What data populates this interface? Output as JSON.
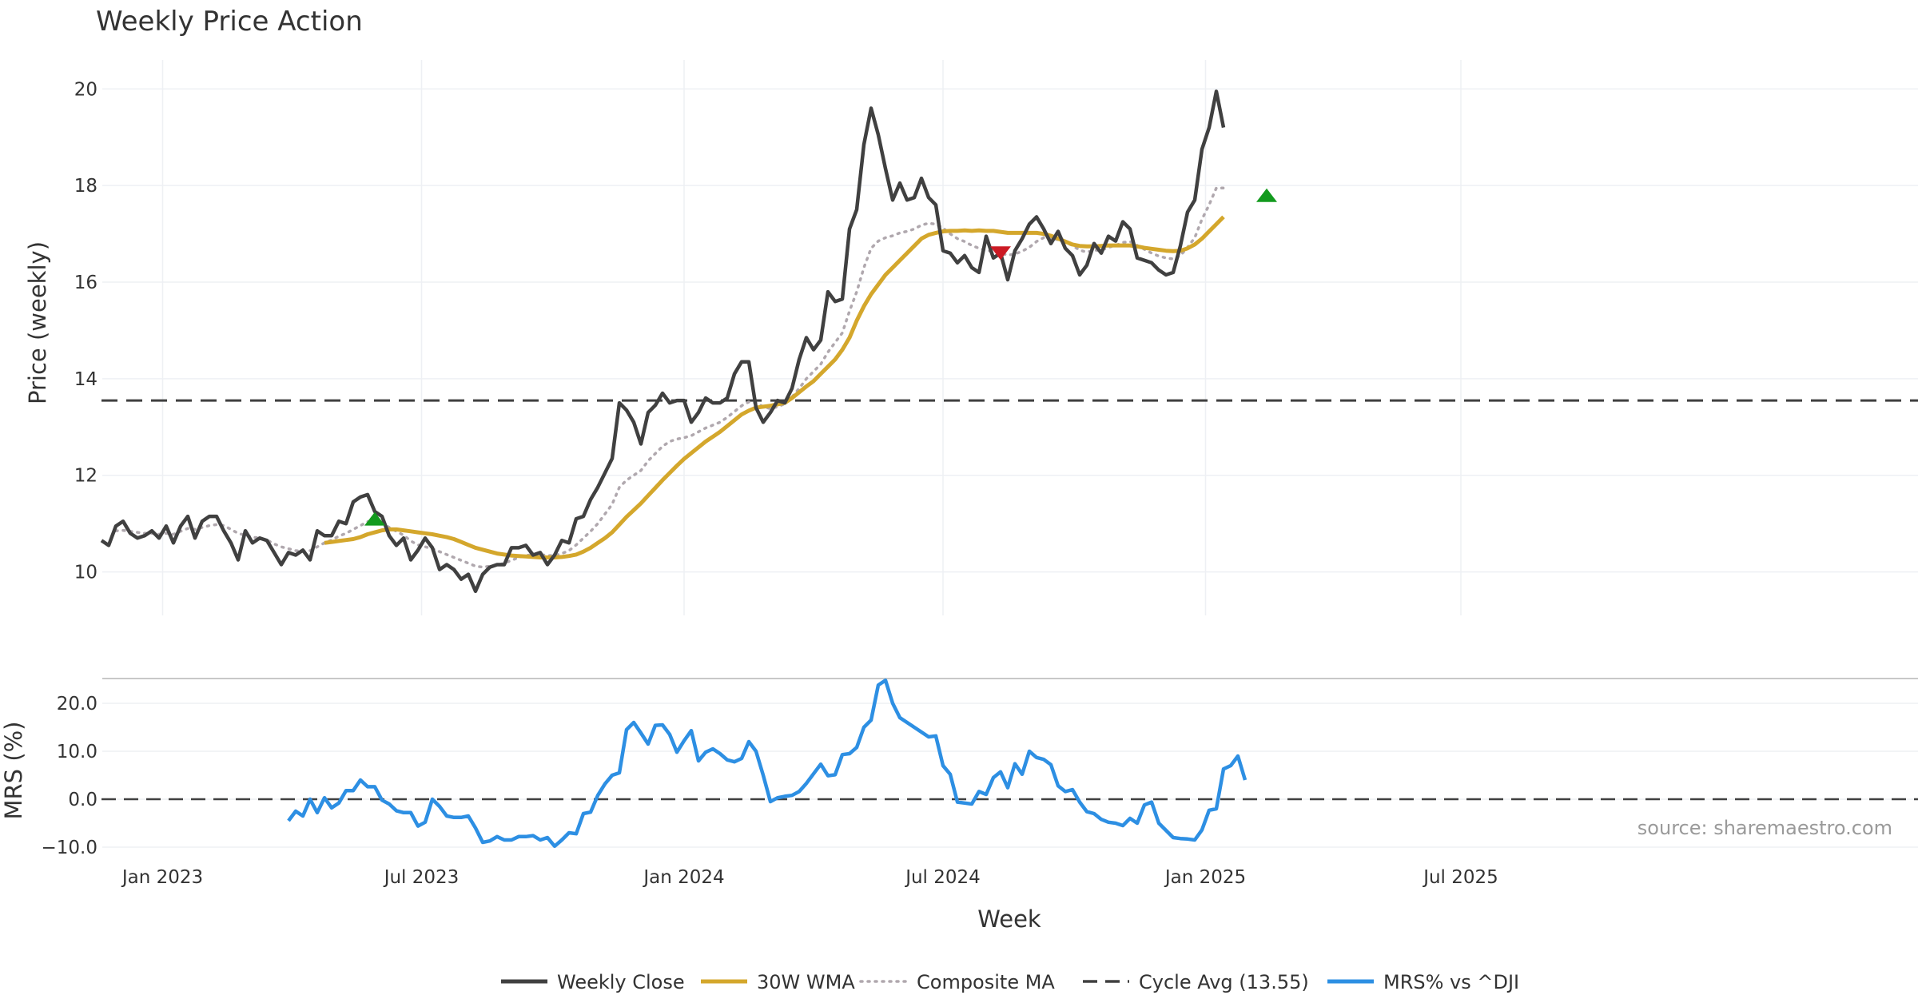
{
  "chart_data": {
    "type": "line",
    "title": "Weekly Price Action",
    "xlabel": "Week",
    "x_ticks": [
      "Jan 2023",
      "Jul 2023",
      "Jan 2024",
      "Jul 2024",
      "Jan 2025",
      "Jul 2025"
    ],
    "source_text": "source: sharemaestro.com",
    "colors": {
      "close": "#404040",
      "wma": "#d4a72c",
      "composite": "#b0a8ae",
      "cycle": "#404040",
      "mrs": "#2d8fe3",
      "buy": "#139a1e",
      "sell": "#cc1a24",
      "grid": "#eef0f4",
      "separator": "#c8c8c8"
    },
    "price_panel": {
      "ylabel": "Price (weekly)",
      "ylim": [
        9.1,
        20.6
      ],
      "y_ticks": [
        10,
        12,
        14,
        16,
        18,
        20
      ],
      "cycle_avg": 13.55,
      "weekly_close": [
        10.65,
        10.55,
        10.95,
        11.05,
        10.8,
        10.7,
        10.75,
        10.85,
        10.7,
        10.95,
        10.6,
        10.95,
        11.15,
        10.7,
        11.05,
        11.15,
        11.15,
        10.85,
        10.6,
        10.25,
        10.85,
        10.6,
        10.7,
        10.65,
        10.4,
        10.15,
        10.4,
        10.35,
        10.45,
        10.25,
        10.85,
        10.75,
        10.75,
        11.05,
        11.0,
        11.45,
        11.55,
        11.6,
        11.25,
        11.15,
        10.75,
        10.55,
        10.7,
        10.25,
        10.45,
        10.7,
        10.5,
        10.05,
        10.15,
        10.05,
        9.85,
        9.95,
        9.6,
        9.95,
        10.1,
        10.15,
        10.15,
        10.5,
        10.5,
        10.55,
        10.35,
        10.4,
        10.15,
        10.35,
        10.65,
        10.6,
        11.1,
        11.15,
        11.5,
        11.75,
        12.05,
        12.35,
        13.5,
        13.35,
        13.1,
        12.65,
        13.3,
        13.45,
        13.7,
        13.5,
        13.55,
        13.55,
        13.1,
        13.3,
        13.6,
        13.5,
        13.5,
        13.6,
        14.1,
        14.35,
        14.35,
        13.4,
        13.1,
        13.3,
        13.55,
        13.5,
        13.8,
        14.4,
        14.85,
        14.6,
        14.8,
        15.8,
        15.6,
        15.65,
        17.1,
        17.5,
        18.85,
        19.6,
        19.05,
        18.35,
        17.7,
        18.05,
        17.7,
        17.75,
        18.15,
        17.75,
        17.6,
        16.65,
        16.6,
        16.4,
        16.55,
        16.3,
        16.2,
        16.95,
        16.5,
        16.6,
        16.05,
        16.65,
        16.9,
        17.2,
        17.35,
        17.1,
        16.8,
        17.05,
        16.7,
        16.55,
        16.15,
        16.35,
        16.8,
        16.6,
        16.95,
        16.85,
        17.25,
        17.1,
        16.5,
        16.45,
        16.4,
        16.25,
        16.15,
        16.2,
        16.75,
        17.45,
        17.7,
        18.75,
        19.2,
        19.95,
        19.2
      ],
      "wma_30w": [
        null,
        null,
        null,
        null,
        null,
        null,
        null,
        null,
        null,
        null,
        null,
        null,
        null,
        null,
        null,
        null,
        null,
        null,
        null,
        null,
        null,
        null,
        null,
        null,
        null,
        null,
        null,
        null,
        null,
        null,
        null,
        10.6,
        10.62,
        10.64,
        10.66,
        10.68,
        10.72,
        10.78,
        10.82,
        10.86,
        10.88,
        10.88,
        10.86,
        10.84,
        10.82,
        10.8,
        10.78,
        10.75,
        10.72,
        10.68,
        10.62,
        10.56,
        10.5,
        10.46,
        10.42,
        10.38,
        10.36,
        10.34,
        10.33,
        10.32,
        10.31,
        10.3,
        10.3,
        10.3,
        10.31,
        10.33,
        10.36,
        10.42,
        10.5,
        10.6,
        10.7,
        10.82,
        10.98,
        11.14,
        11.28,
        11.42,
        11.58,
        11.74,
        11.9,
        12.05,
        12.2,
        12.34,
        12.46,
        12.58,
        12.7,
        12.8,
        12.9,
        13.02,
        13.14,
        13.26,
        13.34,
        13.4,
        13.42,
        13.44,
        13.47,
        13.5,
        13.6,
        13.72,
        13.84,
        13.95,
        14.1,
        14.25,
        14.4,
        14.6,
        14.85,
        15.2,
        15.5,
        15.75,
        15.95,
        16.15,
        16.3,
        16.45,
        16.6,
        16.75,
        16.9,
        16.98,
        17.02,
        17.05,
        17.06,
        17.06,
        17.07,
        17.06,
        17.07,
        17.06,
        17.06,
        17.04,
        17.02,
        17.02,
        17.02,
        17.02,
        17.02,
        17.0,
        16.96,
        16.9,
        16.84,
        16.78,
        16.75,
        16.74,
        16.74,
        16.75,
        16.76,
        16.76,
        16.76,
        16.76,
        16.74,
        16.71,
        16.69,
        16.67,
        16.65,
        16.64,
        16.65,
        16.7,
        16.78,
        16.9,
        17.05,
        17.2,
        17.35
      ],
      "composite_ma": [
        null,
        null,
        10.85,
        10.86,
        10.84,
        10.82,
        10.8,
        10.8,
        10.78,
        10.8,
        10.78,
        10.84,
        10.9,
        10.88,
        10.92,
        10.96,
        10.98,
        10.96,
        10.88,
        10.8,
        10.76,
        10.72,
        10.7,
        10.66,
        10.58,
        10.52,
        10.48,
        10.44,
        10.42,
        10.44,
        10.52,
        10.6,
        10.66,
        10.74,
        10.8,
        10.88,
        10.96,
        11.04,
        11.06,
        11.02,
        10.92,
        10.84,
        10.76,
        10.64,
        10.56,
        10.52,
        10.48,
        10.42,
        10.36,
        10.3,
        10.24,
        10.18,
        10.12,
        10.1,
        10.12,
        10.14,
        10.18,
        10.24,
        10.3,
        10.34,
        10.36,
        10.36,
        10.34,
        10.34,
        10.38,
        10.44,
        10.56,
        10.7,
        10.84,
        11.0,
        11.2,
        11.4,
        11.75,
        11.9,
        12.0,
        12.1,
        12.3,
        12.45,
        12.6,
        12.7,
        12.75,
        12.78,
        12.82,
        12.9,
        12.98,
        13.04,
        13.1,
        13.2,
        13.32,
        13.44,
        13.52,
        13.5,
        13.42,
        13.38,
        13.42,
        13.48,
        13.62,
        13.8,
        14.0,
        14.15,
        14.3,
        14.55,
        14.75,
        14.95,
        15.4,
        15.8,
        16.3,
        16.7,
        16.85,
        16.92,
        16.96,
        17.02,
        17.05,
        17.1,
        17.18,
        17.22,
        17.2,
        17.12,
        17.0,
        16.9,
        16.84,
        16.76,
        16.7,
        16.66,
        16.63,
        16.6,
        16.56,
        16.58,
        16.64,
        16.72,
        16.84,
        16.92,
        16.9,
        16.88,
        16.82,
        16.76,
        16.66,
        16.62,
        16.66,
        16.66,
        16.72,
        16.76,
        16.82,
        16.84,
        16.76,
        16.68,
        16.6,
        16.54,
        16.5,
        16.48,
        16.55,
        16.72,
        16.92,
        17.3,
        17.6,
        17.95,
        17.95
      ],
      "signals": [
        {
          "week": 38,
          "value": 11.1,
          "kind": "buy"
        },
        {
          "week": 125,
          "value": 16.6,
          "kind": "sell"
        },
        {
          "week": 162,
          "value": 17.8,
          "kind": "buy"
        }
      ]
    },
    "mrs_panel": {
      "ylabel": "MRS (%)",
      "ylim": [
        -12,
        25
      ],
      "y_ticks": [
        20.0,
        10.0,
        0.0,
        -10.0
      ],
      "y_tick_labels": [
        "20.0",
        "10.0",
        "0.0",
        "−10.0"
      ],
      "zero_line": 0.0,
      "mrs_vs_dji": [
        null,
        null,
        null,
        null,
        null,
        null,
        null,
        null,
        null,
        null,
        null,
        null,
        null,
        null,
        null,
        null,
        null,
        null,
        null,
        null,
        null,
        null,
        null,
        null,
        null,
        null,
        -4.5,
        -2.5,
        -3.5,
        0.0,
        -2.8,
        0.3,
        -1.8,
        -0.8,
        1.8,
        1.8,
        4.0,
        2.6,
        2.6,
        -0.2,
        -1.0,
        -2.4,
        -2.8,
        -2.8,
        -5.6,
        -4.8,
        0.0,
        -1.5,
        -3.5,
        -3.8,
        -3.8,
        -3.5,
        -6.0,
        -9.0,
        -8.7,
        -7.8,
        -8.5,
        -8.5,
        -7.8,
        -7.8,
        -7.6,
        -8.5,
        -8.0,
        -9.8,
        -8.5,
        -7.0,
        -7.2,
        -3.0,
        -2.7,
        0.8,
        3.2,
        5.0,
        5.5,
        14.5,
        16.0,
        13.8,
        11.5,
        15.4,
        15.5,
        13.5,
        9.8,
        12.2,
        14.3,
        8.0,
        9.8,
        10.5,
        9.5,
        8.2,
        7.8,
        8.5,
        12.0,
        10.0,
        5.0,
        -0.5,
        0.3,
        0.6,
        0.8,
        1.6,
        3.3,
        5.3,
        7.3,
        4.9,
        5.1,
        9.3,
        9.5,
        10.8,
        15.0,
        16.5,
        23.8,
        24.8,
        20.0,
        17.0,
        16.0,
        15.0,
        14.0,
        13.0,
        13.2,
        7.0,
        5.2,
        -0.6,
        -0.8,
        -1.0,
        1.6,
        1.0,
        4.5,
        5.7,
        2.4,
        7.4,
        5.2,
        10.0,
        8.7,
        8.3,
        7.2,
        2.8,
        1.6,
        2.0,
        -0.6,
        -2.6,
        -3.0,
        -4.2,
        -4.8,
        -5.0,
        -5.5,
        -4.0,
        -5.0,
        -1.2,
        -0.6,
        -5.0,
        -6.5,
        -8.0,
        -8.2,
        -8.3,
        -8.5,
        -6.4,
        -2.3,
        -2.0,
        6.3,
        7.0,
        9.0,
        4.0
      ]
    },
    "legend": [
      {
        "label": "Weekly Close",
        "style": "solid",
        "color_key": "close"
      },
      {
        "label": "30W WMA",
        "style": "solid",
        "color_key": "wma"
      },
      {
        "label": "Composite MA",
        "style": "dotted",
        "color_key": "composite"
      },
      {
        "label": "Cycle Avg (13.55)",
        "style": "dashed",
        "color_key": "cycle"
      },
      {
        "label": "MRS% vs ^DJI",
        "style": "solid",
        "color_key": "mrs"
      }
    ]
  }
}
